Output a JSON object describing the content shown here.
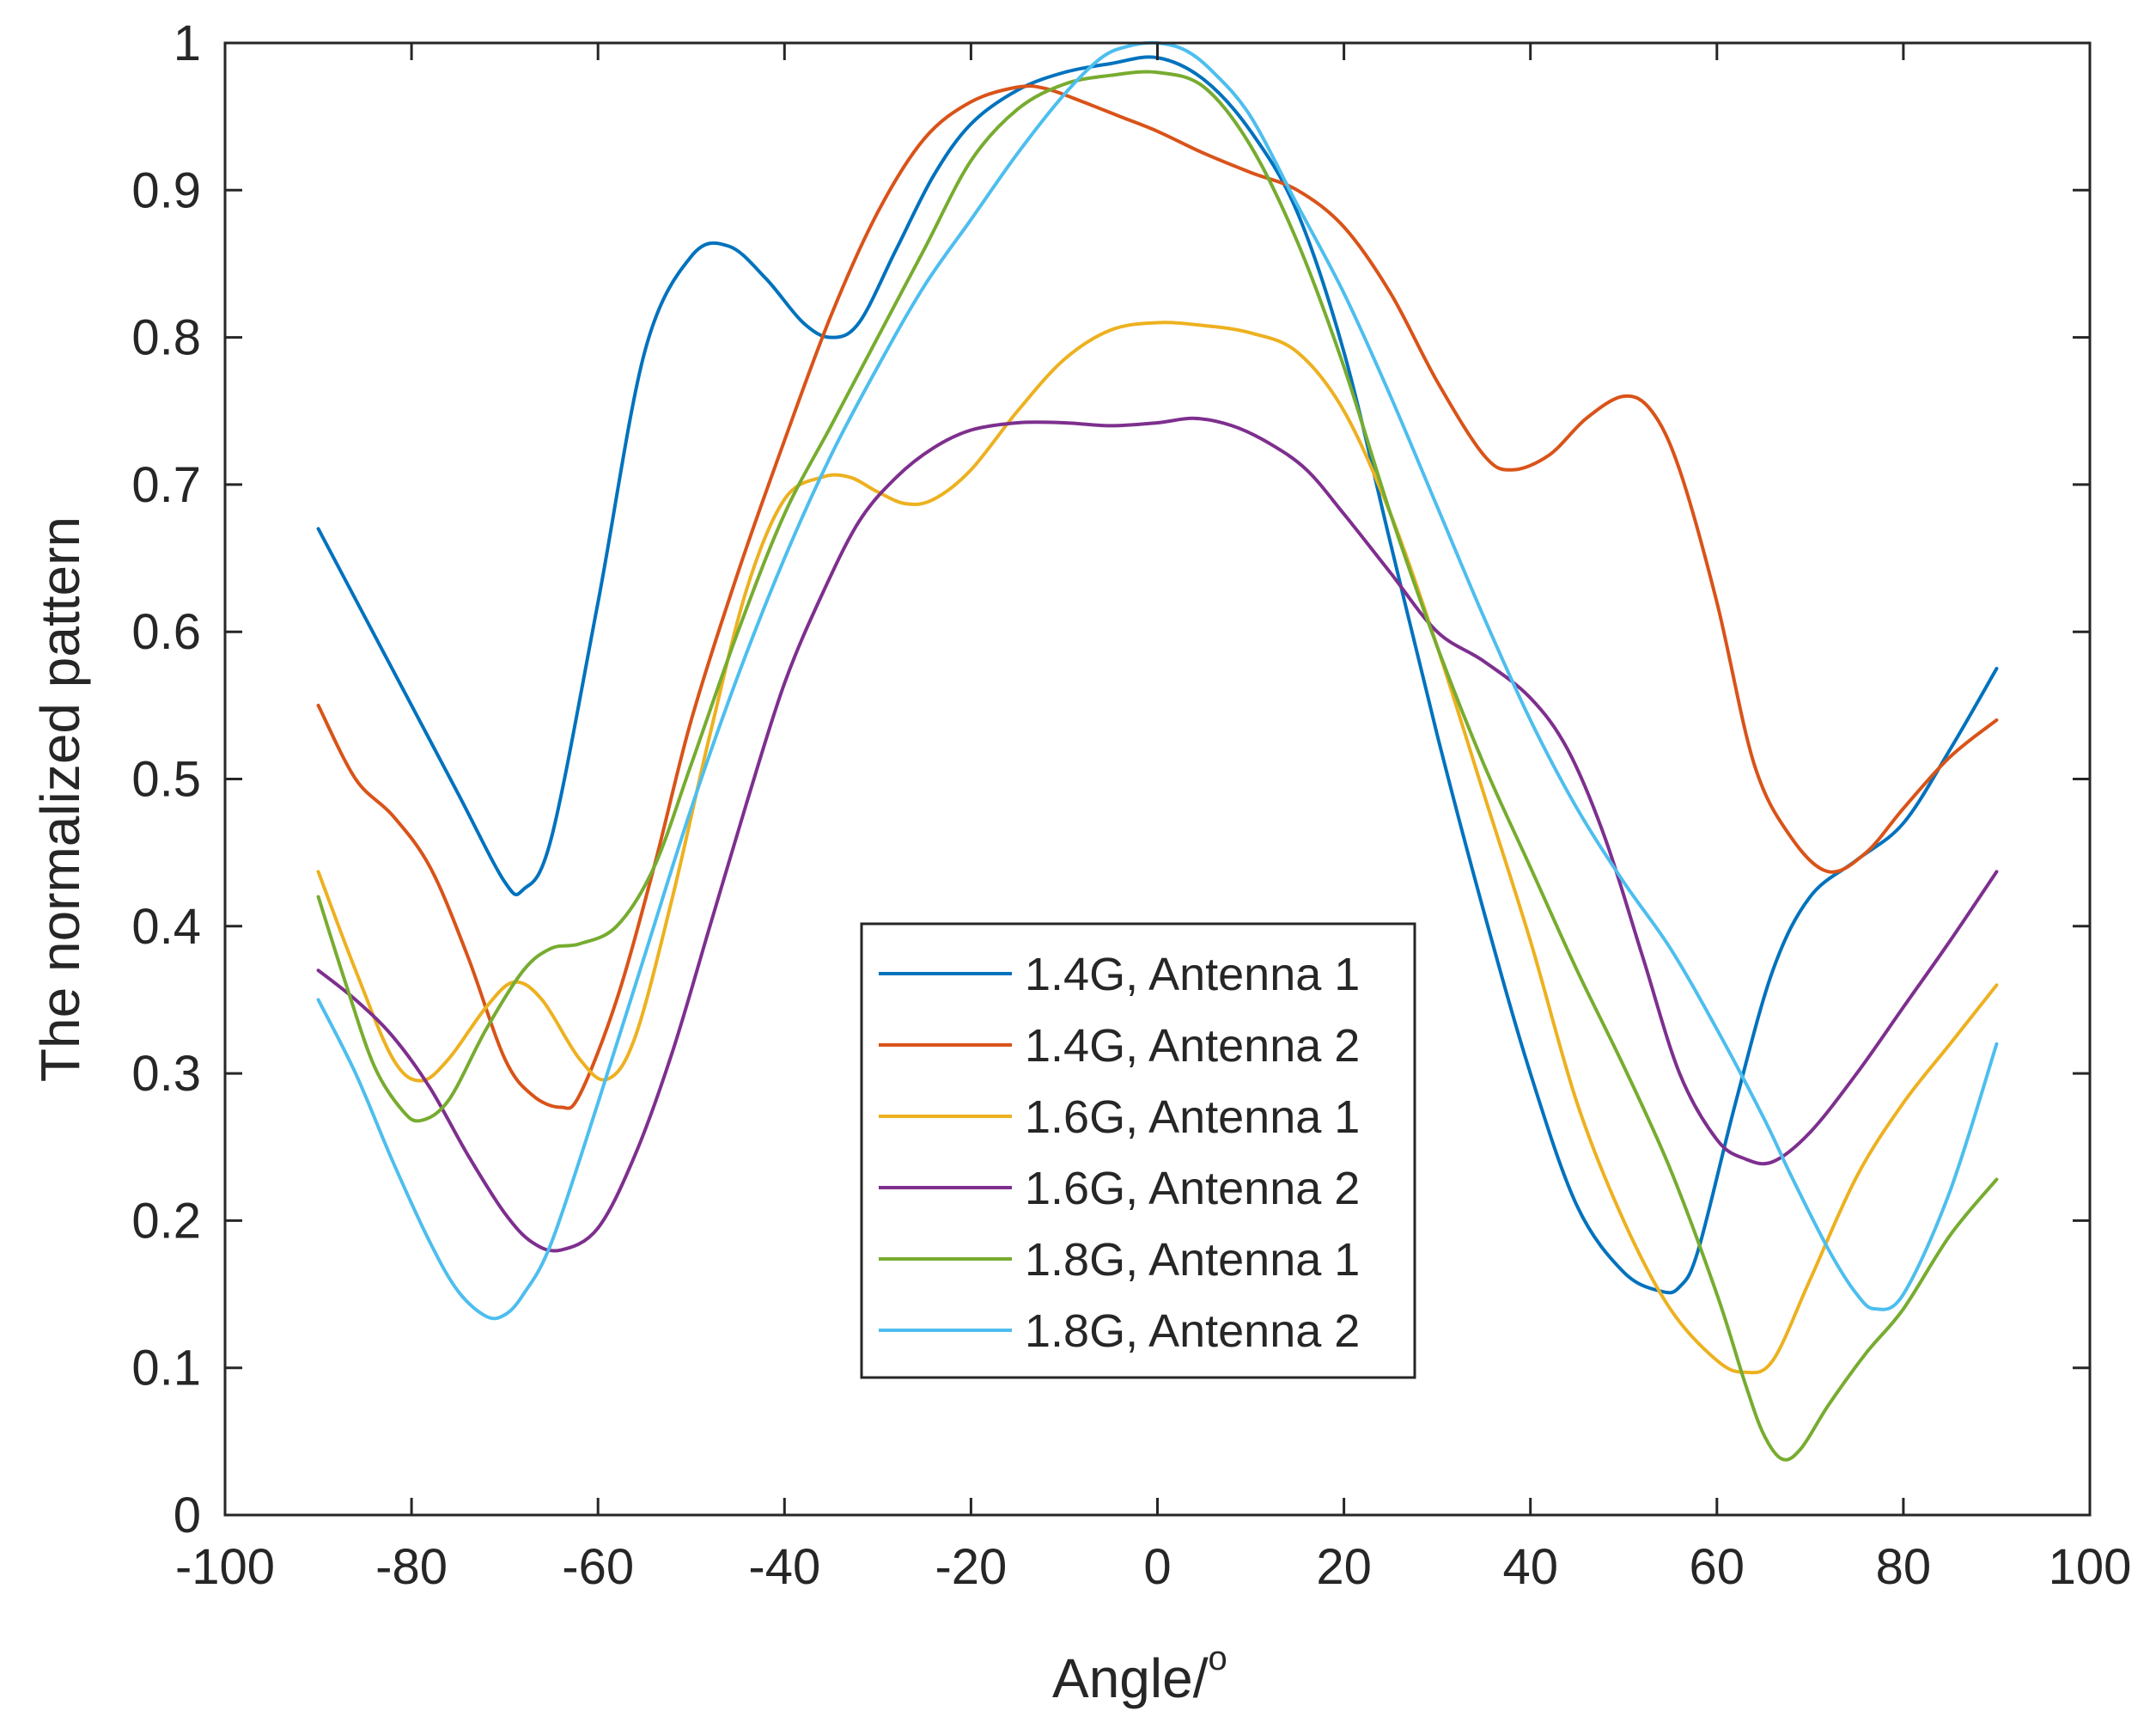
{
  "chart_data": {
    "type": "line",
    "title": "",
    "xlabel": "Angle/",
    "xlabel_superscript": "o",
    "ylabel": "The normalized pattern",
    "xlim": [
      -100,
      100
    ],
    "ylim": [
      0,
      1
    ],
    "xticks": [
      -100,
      -80,
      -60,
      -40,
      -20,
      0,
      20,
      40,
      60,
      80,
      100
    ],
    "yticks": [
      0,
      0.1,
      0.2,
      0.3,
      0.4,
      0.5,
      0.6,
      0.7,
      0.8,
      0.9,
      1
    ],
    "xtick_labels": [
      "-100",
      "-80",
      "-60",
      "-40",
      "-20",
      "0",
      "20",
      "40",
      "60",
      "80",
      "100"
    ],
    "ytick_labels": [
      "0",
      "0.1",
      "0.2",
      "0.3",
      "0.4",
      "0.5",
      "0.6",
      "0.7",
      "0.8",
      "0.9",
      "1"
    ],
    "grid": false,
    "legend_position": "center-bottom",
    "series": [
      {
        "name": "1.4G, Antenna 1",
        "color": "#0072BD",
        "x": [
          -90,
          -85,
          -80,
          -75,
          -70,
          -68,
          -65,
          -60,
          -55,
          -50,
          -46,
          -42,
          -38,
          -35,
          -32,
          -28,
          -24,
          -20,
          -15,
          -10,
          -5,
          0,
          5,
          10,
          15,
          20,
          25,
          30,
          35,
          40,
          45,
          50,
          54,
          56,
          58,
          62,
          66,
          70,
          75,
          80,
          85,
          90
        ],
        "y": [
          0.67,
          0.61,
          0.55,
          0.49,
          0.43,
          0.425,
          0.46,
          0.62,
          0.79,
          0.855,
          0.862,
          0.84,
          0.81,
          0.8,
          0.81,
          0.86,
          0.91,
          0.945,
          0.968,
          0.98,
          0.986,
          0.99,
          0.975,
          0.94,
          0.885,
          0.79,
          0.66,
          0.53,
          0.41,
          0.3,
          0.21,
          0.165,
          0.152,
          0.155,
          0.18,
          0.28,
          0.37,
          0.42,
          0.445,
          0.47,
          0.52,
          0.575
        ]
      },
      {
        "name": "1.4G, Antenna 2",
        "color": "#D95319",
        "x": [
          -90,
          -86,
          -82,
          -78,
          -74,
          -70,
          -67,
          -64,
          -62,
          -58,
          -54,
          -50,
          -45,
          -40,
          -35,
          -30,
          -25,
          -20,
          -15,
          -12,
          -8,
          -4,
          0,
          5,
          10,
          15,
          20,
          25,
          30,
          35,
          38,
          42,
          46,
          50,
          53,
          56,
          60,
          64,
          68,
          72,
          76,
          80,
          85,
          90
        ],
        "y": [
          0.55,
          0.5,
          0.475,
          0.44,
          0.38,
          0.31,
          0.285,
          0.277,
          0.285,
          0.35,
          0.44,
          0.54,
          0.64,
          0.73,
          0.815,
          0.885,
          0.935,
          0.96,
          0.97,
          0.969,
          0.96,
          0.95,
          0.94,
          0.925,
          0.912,
          0.9,
          0.875,
          0.83,
          0.77,
          0.72,
          0.71,
          0.72,
          0.745,
          0.76,
          0.75,
          0.71,
          0.62,
          0.51,
          0.46,
          0.437,
          0.45,
          0.48,
          0.515,
          0.54
        ]
      },
      {
        "name": "1.6G, Antenna 1",
        "color": "#EDB120",
        "x": [
          -90,
          -86,
          -82,
          -79,
          -76,
          -72,
          -69,
          -66,
          -62,
          -59,
          -56,
          -52,
          -48,
          -44,
          -40,
          -36,
          -33,
          -30,
          -27,
          -24,
          -20,
          -15,
          -10,
          -5,
          0,
          5,
          10,
          15,
          20,
          25,
          30,
          35,
          40,
          45,
          50,
          55,
          60,
          63,
          66,
          70,
          75,
          80,
          85,
          90
        ],
        "y": [
          0.437,
          0.37,
          0.31,
          0.295,
          0.31,
          0.345,
          0.362,
          0.35,
          0.31,
          0.296,
          0.325,
          0.42,
          0.53,
          0.63,
          0.69,
          0.705,
          0.705,
          0.695,
          0.687,
          0.69,
          0.71,
          0.75,
          0.785,
          0.805,
          0.81,
          0.808,
          0.803,
          0.79,
          0.75,
          0.68,
          0.59,
          0.49,
          0.39,
          0.28,
          0.2,
          0.14,
          0.105,
          0.097,
          0.105,
          0.16,
          0.23,
          0.28,
          0.32,
          0.36
        ]
      },
      {
        "name": "1.6G, Antenna 2",
        "color": "#7E2F8E",
        "x": [
          -90,
          -86,
          -82,
          -78,
          -74,
          -70,
          -67,
          -64,
          -60,
          -56,
          -52,
          -48,
          -44,
          -40,
          -36,
          -32,
          -28,
          -24,
          -20,
          -15,
          -10,
          -5,
          0,
          4,
          8,
          12,
          16,
          20,
          25,
          30,
          35,
          40,
          44,
          48,
          52,
          56,
          60,
          63,
          66,
          70,
          75,
          80,
          85,
          90
        ],
        "y": [
          0.37,
          0.35,
          0.325,
          0.29,
          0.245,
          0.205,
          0.185,
          0.18,
          0.195,
          0.245,
          0.315,
          0.4,
          0.485,
          0.565,
          0.625,
          0.675,
          0.705,
          0.725,
          0.737,
          0.742,
          0.742,
          0.74,
          0.742,
          0.745,
          0.74,
          0.728,
          0.71,
          0.68,
          0.64,
          0.6,
          0.58,
          0.555,
          0.52,
          0.46,
          0.38,
          0.3,
          0.255,
          0.242,
          0.24,
          0.26,
          0.3,
          0.345,
          0.39,
          0.437
        ]
      },
      {
        "name": "1.8G, Antenna 1",
        "color": "#77AC30",
        "x": [
          -90,
          -87,
          -84,
          -81,
          -79,
          -76,
          -72,
          -68,
          -65,
          -62,
          -58,
          -54,
          -50,
          -45,
          -40,
          -35,
          -30,
          -25,
          -20,
          -15,
          -10,
          -5,
          0,
          5,
          10,
          15,
          20,
          25,
          30,
          35,
          40,
          45,
          50,
          55,
          60,
          63,
          65,
          67,
          69,
          72,
          76,
          80,
          85,
          90
        ],
        "y": [
          0.42,
          0.36,
          0.305,
          0.275,
          0.268,
          0.282,
          0.33,
          0.37,
          0.385,
          0.388,
          0.4,
          0.44,
          0.51,
          0.6,
          0.68,
          0.74,
          0.8,
          0.86,
          0.92,
          0.955,
          0.972,
          0.978,
          0.98,
          0.97,
          0.93,
          0.865,
          0.78,
          0.68,
          0.59,
          0.51,
          0.44,
          0.37,
          0.305,
          0.235,
          0.15,
          0.09,
          0.055,
          0.038,
          0.045,
          0.075,
          0.11,
          0.14,
          0.19,
          0.228
        ]
      },
      {
        "name": "1.8G, Antenna 2",
        "color": "#4DBEEE",
        "x": [
          -90,
          -86,
          -82,
          -78,
          -75,
          -72,
          -70,
          -68,
          -65,
          -60,
          -55,
          -50,
          -45,
          -40,
          -35,
          -30,
          -25,
          -20,
          -15,
          -10,
          -6,
          -3,
          0,
          3,
          6,
          10,
          15,
          20,
          25,
          30,
          35,
          40,
          45,
          50,
          55,
          60,
          65,
          68,
          72,
          75,
          77,
          80,
          85,
          90
        ],
        "y": [
          0.35,
          0.3,
          0.24,
          0.185,
          0.152,
          0.135,
          0.136,
          0.15,
          0.185,
          0.28,
          0.38,
          0.48,
          0.57,
          0.65,
          0.72,
          0.78,
          0.835,
          0.88,
          0.925,
          0.965,
          0.99,
          0.998,
          1.0,
          0.995,
          0.98,
          0.95,
          0.89,
          0.83,
          0.76,
          0.685,
          0.61,
          0.54,
          0.48,
          0.43,
          0.385,
          0.33,
          0.27,
          0.23,
          0.18,
          0.15,
          0.14,
          0.15,
          0.22,
          0.32
        ]
      }
    ]
  }
}
